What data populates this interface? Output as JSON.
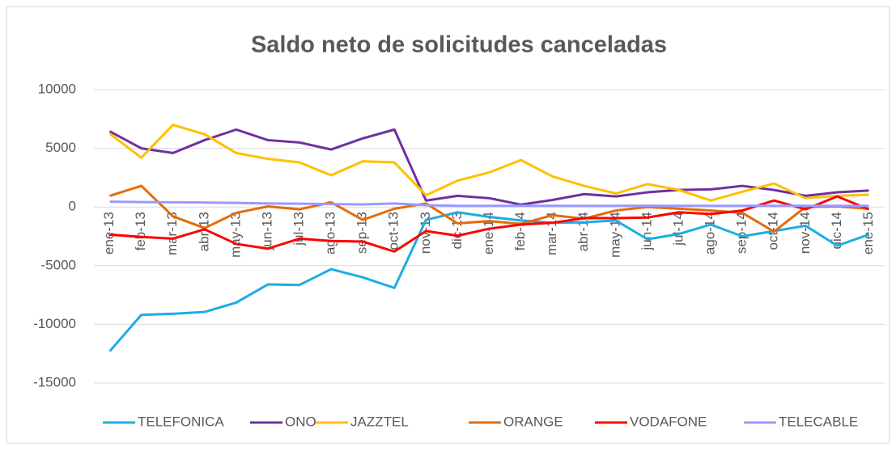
{
  "chart_data": {
    "type": "line",
    "title": "Saldo neto de solicitudes canceladas",
    "categories": [
      "ene-13",
      "feb-13",
      "mar-13",
      "abr-13",
      "may-13",
      "jun-13",
      "jul-13",
      "ago-13",
      "sep-13",
      "oct-13",
      "nov-13",
      "dic-13",
      "ene-14",
      "feb-14",
      "mar-14",
      "abr-14",
      "may-14",
      "jun-14",
      "jul-14",
      "ago-14",
      "sep-14",
      "oct-14",
      "nov-14",
      "dic-14",
      "ene-15"
    ],
    "series": [
      {
        "name": "TELEFONICA",
        "color": "#1CADE4",
        "values": [
          -12300,
          -9200,
          -9100,
          -8950,
          -8150,
          -6600,
          -6650,
          -5300,
          -6000,
          -6900,
          -1100,
          -450,
          -850,
          -1150,
          -1350,
          -1300,
          -1150,
          -2750,
          -2300,
          -1500,
          -2500,
          -2050,
          -1600,
          -3300,
          -2350
        ]
      },
      {
        "name": "ONO",
        "color": "#7030A0",
        "values": [
          6450,
          5000,
          4600,
          5700,
          6600,
          5700,
          5500,
          4900,
          5850,
          6600,
          550,
          950,
          750,
          200,
          600,
          1100,
          900,
          1250,
          1450,
          1500,
          1800,
          1450,
          950,
          1250,
          1400
        ]
      },
      {
        "name": "JAZZTEL",
        "color": "#FFC000",
        "values": [
          6250,
          4200,
          7000,
          6200,
          4600,
          4100,
          3800,
          2700,
          3900,
          3800,
          1000,
          2250,
          2950,
          4000,
          2600,
          1800,
          1150,
          1950,
          1450,
          550,
          1300,
          2000,
          750,
          950,
          1050
        ]
      },
      {
        "name": "ORANGE",
        "color": "#E46C0A",
        "values": [
          950,
          1800,
          -800,
          -1800,
          -500,
          50,
          -200,
          400,
          -1100,
          -150,
          300,
          -1400,
          -1200,
          -1450,
          -700,
          -1000,
          -300,
          0,
          -150,
          -300,
          -500,
          -2100,
          0,
          50,
          -150
        ]
      },
      {
        "name": "VODAFONE",
        "color": "#FF0000",
        "values": [
          -2350,
          -2550,
          -2700,
          -1900,
          -3150,
          -3550,
          -2700,
          -2900,
          -2950,
          -3800,
          -2050,
          -2450,
          -1850,
          -1500,
          -1350,
          -950,
          -950,
          -900,
          -450,
          -600,
          -300,
          550,
          -200,
          900,
          -200
        ]
      },
      {
        "name": "TELECABLE",
        "color": "#9999FF",
        "values": [
          450,
          420,
          400,
          380,
          350,
          300,
          280,
          250,
          220,
          300,
          150,
          100,
          100,
          100,
          100,
          100,
          100,
          100,
          100,
          100,
          100,
          100,
          100,
          100,
          100
        ]
      }
    ],
    "ylim": [
      -15000,
      10000
    ],
    "yticks": [
      -15000,
      -10000,
      -5000,
      0,
      5000,
      10000
    ],
    "grid": true,
    "legend": "bottom"
  }
}
